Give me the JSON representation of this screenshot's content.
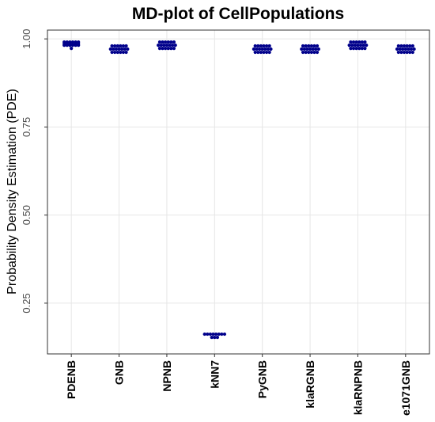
{
  "chart_data": {
    "type": "strip",
    "title": "MD-plot of CellPopulations",
    "y_label": "Probability Density Estimation (PDE)",
    "categories": [
      "PDENB",
      "GNB",
      "NPNB",
      "kNN7",
      "PyGNB",
      "klaRGNB",
      "klaRNPNB",
      "e1071GNB"
    ],
    "values": [
      [
        0.991,
        0.991,
        0.991,
        0.991,
        0.991,
        0.991,
        0.986,
        0.986,
        0.986,
        0.986,
        0.986,
        0.986,
        0.982,
        0.982,
        0.982,
        0.982,
        0.982,
        0.982,
        0.973
      ],
      [
        0.98,
        0.98,
        0.98,
        0.98,
        0.98,
        0.98,
        0.971,
        0.971,
        0.971,
        0.971,
        0.971,
        0.971,
        0.971,
        0.962,
        0.962,
        0.962,
        0.962,
        0.962,
        0.962
      ],
      [
        0.991,
        0.991,
        0.991,
        0.991,
        0.991,
        0.991,
        0.982,
        0.982,
        0.982,
        0.982,
        0.982,
        0.982,
        0.982,
        0.973,
        0.973,
        0.973,
        0.973,
        0.973,
        0.973
      ],
      [
        0.162,
        0.162,
        0.162,
        0.162,
        0.162,
        0.162,
        0.162,
        0.162,
        0.153,
        0.153,
        0.153
      ],
      [
        0.98,
        0.98,
        0.98,
        0.98,
        0.98,
        0.98,
        0.971,
        0.971,
        0.971,
        0.971,
        0.971,
        0.971,
        0.971,
        0.962,
        0.962,
        0.962,
        0.962,
        0.962,
        0.962
      ],
      [
        0.98,
        0.98,
        0.98,
        0.98,
        0.98,
        0.98,
        0.971,
        0.971,
        0.971,
        0.971,
        0.971,
        0.971,
        0.971,
        0.962,
        0.962,
        0.962,
        0.962,
        0.962,
        0.962
      ],
      [
        0.991,
        0.991,
        0.991,
        0.991,
        0.991,
        0.991,
        0.982,
        0.982,
        0.982,
        0.982,
        0.982,
        0.982,
        0.982,
        0.973,
        0.973,
        0.973,
        0.973,
        0.973,
        0.973
      ],
      [
        0.98,
        0.98,
        0.98,
        0.98,
        0.98,
        0.98,
        0.971,
        0.971,
        0.971,
        0.971,
        0.971,
        0.971,
        0.971,
        0.962,
        0.962,
        0.962,
        0.962,
        0.962,
        0.962
      ]
    ],
    "color": "#00008b",
    "ylim": [
      0.106,
      1.025
    ],
    "yticks": [
      {
        "value": 0.25,
        "label": "0.25"
      },
      {
        "value": 0.5,
        "label": "0.50"
      },
      {
        "value": 0.75,
        "label": "0.75"
      },
      {
        "value": 1,
        "label": "1.00"
      }
    ],
    "grid": true
  }
}
